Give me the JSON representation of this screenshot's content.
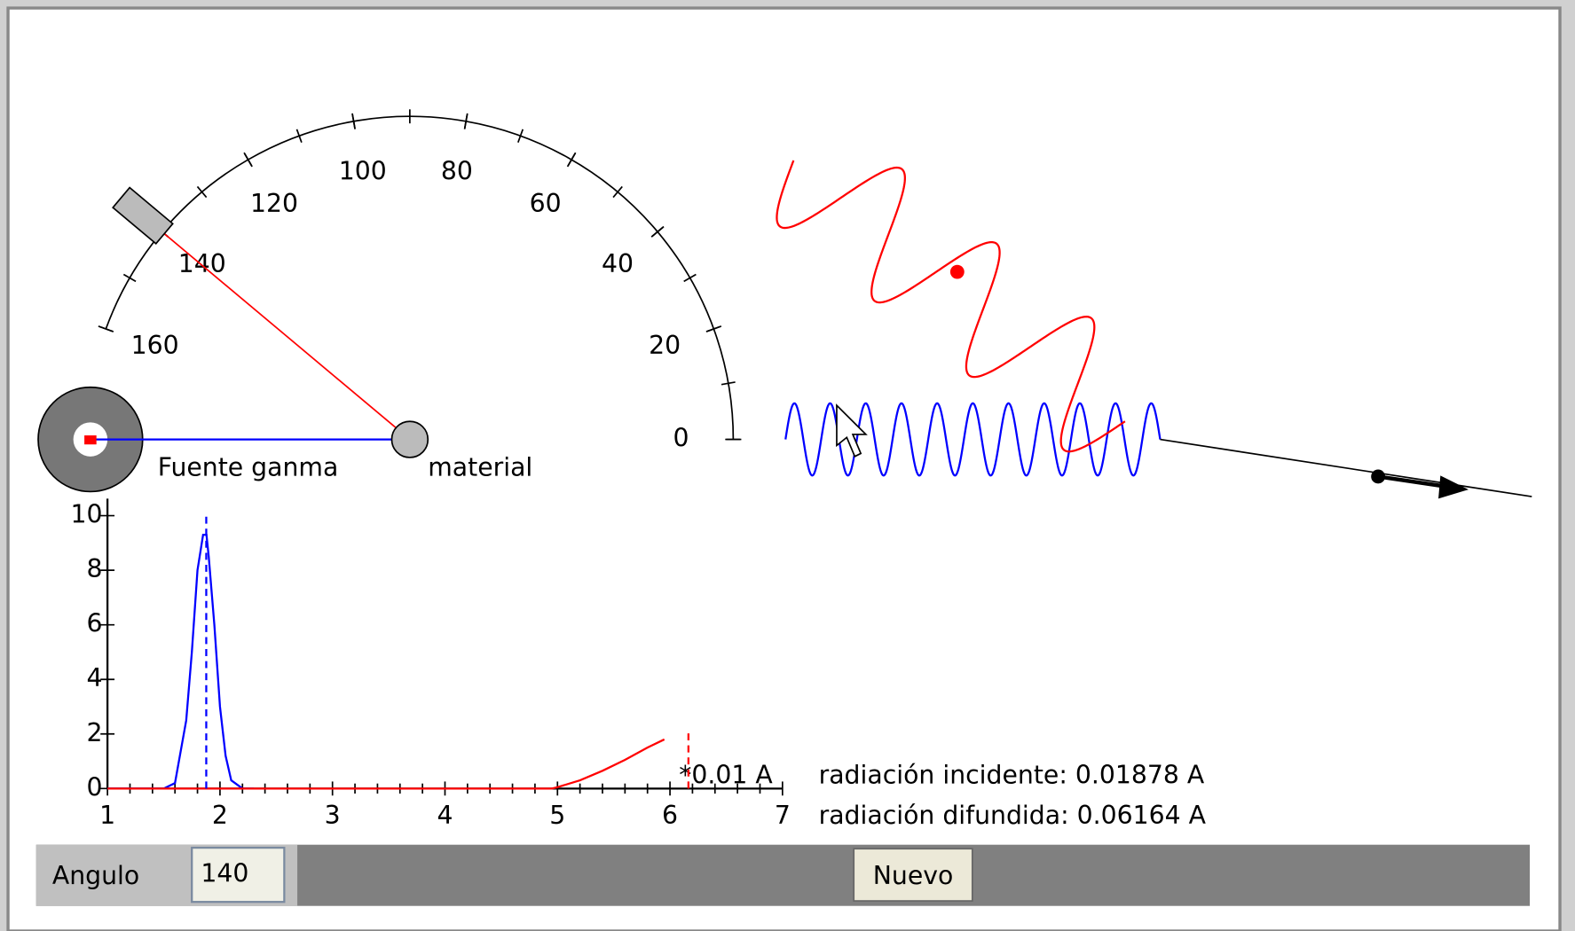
{
  "protractor": {
    "labels": [
      0,
      20,
      40,
      60,
      80,
      100,
      120,
      140,
      160
    ]
  },
  "source_label": "Fuente ganma",
  "material_label": "material",
  "chart_data": {
    "type": "line",
    "x_label": "*0.01 A",
    "xlim": [
      1,
      7
    ],
    "ylim": [
      0,
      10
    ],
    "xticks": [
      1,
      2,
      3,
      4,
      5,
      6,
      7
    ],
    "yticks": [
      0,
      2,
      4,
      6,
      8,
      10
    ],
    "series": [
      {
        "color": "#0000ff",
        "x": [
          1,
          1.5,
          1.6,
          1.7,
          1.75,
          1.8,
          1.85,
          1.88,
          1.9,
          1.95,
          2.0,
          2.05,
          2.1,
          2.2,
          2.3
        ],
        "values": [
          0,
          0,
          0.2,
          2.5,
          5,
          8,
          9.3,
          9.3,
          8.5,
          6,
          3,
          1.2,
          0.3,
          0,
          0
        ]
      },
      {
        "color": "#ff0000",
        "x": [
          1,
          4.95,
          5.0,
          5.2,
          5.4,
          5.6,
          5.8,
          5.95
        ],
        "values": [
          0,
          0,
          0.05,
          0.3,
          0.65,
          1.05,
          1.5,
          1.8
        ]
      }
    ],
    "markers": [
      {
        "x": 1.878,
        "top": 10,
        "color": "#0000ff"
      },
      {
        "x": 6.164,
        "top": 2.1,
        "color": "#ff0000"
      }
    ]
  },
  "readouts": [
    "radiación incidente: 0.01878 A",
    "radiación difundida: 0.06164 A"
  ],
  "controls": {
    "angle_label": "Angulo",
    "angle": 140,
    "button": "Nuevo"
  }
}
